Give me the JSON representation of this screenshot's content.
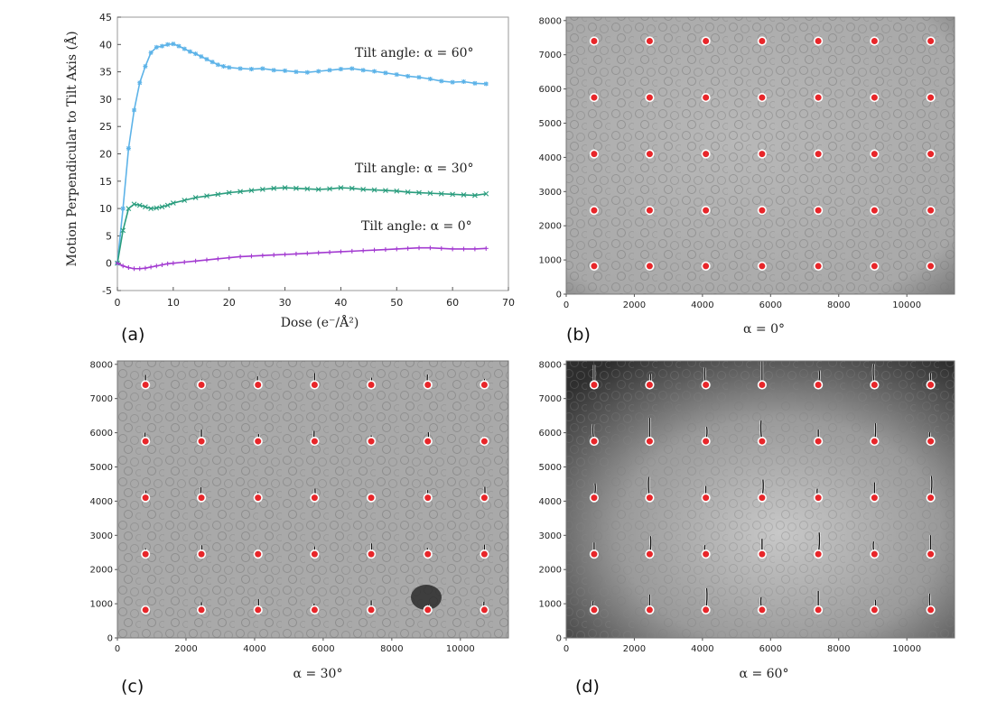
{
  "chart_data": [
    {
      "id": "a",
      "type": "line",
      "panel_label": "(a)",
      "xlabel": "Dose (e⁻/Å²)",
      "ylabel": "Motion Perpendicular to Tilt Axis (Å)",
      "xlim": [
        0,
        70
      ],
      "ylim": [
        -5,
        45
      ],
      "xticks": [
        "0",
        "10",
        "20",
        "30",
        "40",
        "50",
        "60",
        "70"
      ],
      "yticks": [
        "-5",
        "0",
        "5",
        "10",
        "15",
        "20",
        "25",
        "30",
        "35",
        "40",
        "45"
      ],
      "grid": false,
      "series": [
        {
          "annotation": "Tilt angle: α = 60°",
          "color": "#5db3e8",
          "marker": "*",
          "x": [
            0,
            1,
            2,
            3,
            4,
            5,
            6,
            7,
            8,
            9,
            10,
            11,
            12,
            13,
            14,
            15,
            16,
            17,
            18,
            19,
            20,
            22,
            24,
            26,
            28,
            30,
            32,
            34,
            36,
            38,
            40,
            42,
            44,
            46,
            48,
            50,
            52,
            54,
            56,
            58,
            60,
            62,
            64,
            66
          ],
          "y": [
            0,
            10,
            21,
            28,
            33,
            36,
            38.5,
            39.5,
            39.7,
            40,
            40.1,
            39.7,
            39.2,
            38.7,
            38.3,
            37.8,
            37.3,
            36.8,
            36.3,
            36,
            35.8,
            35.6,
            35.5,
            35.6,
            35.3,
            35.2,
            35.0,
            34.9,
            35.1,
            35.3,
            35.5,
            35.6,
            35.3,
            35.1,
            34.8,
            34.5,
            34.2,
            34.0,
            33.7,
            33.3,
            33.1,
            33.2,
            32.9,
            32.8
          ]
        },
        {
          "annotation": "Tilt angle: α = 30°",
          "color": "#2a9d7e",
          "marker": "x",
          "x": [
            0,
            1,
            2,
            3,
            4,
            5,
            6,
            7,
            8,
            9,
            10,
            12,
            14,
            16,
            18,
            20,
            22,
            24,
            26,
            28,
            30,
            32,
            34,
            36,
            38,
            40,
            42,
            44,
            46,
            48,
            50,
            52,
            54,
            56,
            58,
            60,
            62,
            64,
            66
          ],
          "y": [
            0,
            6,
            10,
            10.8,
            10.6,
            10.3,
            10.0,
            10.1,
            10.3,
            10.6,
            11,
            11.5,
            12,
            12.3,
            12.6,
            12.9,
            13.1,
            13.3,
            13.5,
            13.7,
            13.8,
            13.7,
            13.6,
            13.5,
            13.6,
            13.8,
            13.7,
            13.5,
            13.4,
            13.3,
            13.2,
            13.0,
            12.9,
            12.8,
            12.7,
            12.6,
            12.5,
            12.4,
            12.7
          ]
        },
        {
          "annotation": "Tilt angle: α = 0°",
          "color": "#a33bd1",
          "marker": "+",
          "x": [
            0,
            1,
            2,
            3,
            4,
            5,
            6,
            7,
            8,
            9,
            10,
            12,
            14,
            16,
            18,
            20,
            22,
            24,
            26,
            28,
            30,
            32,
            34,
            36,
            38,
            40,
            42,
            44,
            46,
            48,
            50,
            52,
            54,
            56,
            58,
            60,
            62,
            64,
            66
          ],
          "y": [
            0,
            -0.5,
            -0.8,
            -1.0,
            -1.0,
            -0.9,
            -0.7,
            -0.5,
            -0.3,
            -0.1,
            0,
            0.2,
            0.4,
            0.6,
            0.8,
            1.0,
            1.2,
            1.3,
            1.4,
            1.5,
            1.6,
            1.7,
            1.8,
            1.9,
            2.0,
            2.1,
            2.2,
            2.3,
            2.4,
            2.5,
            2.6,
            2.7,
            2.8,
            2.8,
            2.7,
            2.6,
            2.6,
            2.6,
            2.7
          ]
        }
      ]
    },
    {
      "id": "b",
      "type": "scatter",
      "panel_label": "(b)",
      "caption": "α = 0°",
      "xlim": [
        0,
        11400
      ],
      "ylim": [
        0,
        8100
      ],
      "xticks": [
        "0",
        "2000",
        "4000",
        "6000",
        "8000",
        "10000"
      ],
      "yticks": [
        "0",
        "1000",
        "2000",
        "3000",
        "4000",
        "5000",
        "6000",
        "7000",
        "8000"
      ],
      "background": "cryo-EM micrograph",
      "points_x": [
        820,
        2450,
        4100,
        5750,
        7400,
        9050,
        10700
      ],
      "points_y": [
        820,
        2450,
        4100,
        5750,
        7400
      ],
      "track_scale": 0.15
    },
    {
      "id": "c",
      "type": "scatter",
      "panel_label": "(c)",
      "caption": "α = 30°",
      "xlim": [
        0,
        11400
      ],
      "ylim": [
        0,
        8100
      ],
      "xticks": [
        "0",
        "2000",
        "4000",
        "6000",
        "8000",
        "10000"
      ],
      "yticks": [
        "0",
        "1000",
        "2000",
        "3000",
        "4000",
        "5000",
        "6000",
        "7000",
        "8000"
      ],
      "background": "cryo-EM micrograph",
      "points_x": [
        820,
        2450,
        4100,
        5750,
        7400,
        9050,
        10700
      ],
      "points_y": [
        820,
        2450,
        4100,
        5750,
        7400
      ],
      "track_scale": 0.5
    },
    {
      "id": "d",
      "type": "scatter",
      "panel_label": "(d)",
      "caption": "α = 60°",
      "xlim": [
        0,
        11400
      ],
      "ylim": [
        0,
        8100
      ],
      "xticks": [
        "0",
        "2000",
        "4000",
        "6000",
        "8000",
        "10000"
      ],
      "yticks": [
        "0",
        "1000",
        "2000",
        "3000",
        "4000",
        "5000",
        "6000",
        "7000",
        "8000"
      ],
      "background": "cryo-EM micrograph",
      "points_x": [
        820,
        2450,
        4100,
        5750,
        7400,
        9050,
        10700
      ],
      "points_y": [
        820,
        2450,
        4100,
        5750,
        7400
      ],
      "track_scale": 1.0
    }
  ]
}
